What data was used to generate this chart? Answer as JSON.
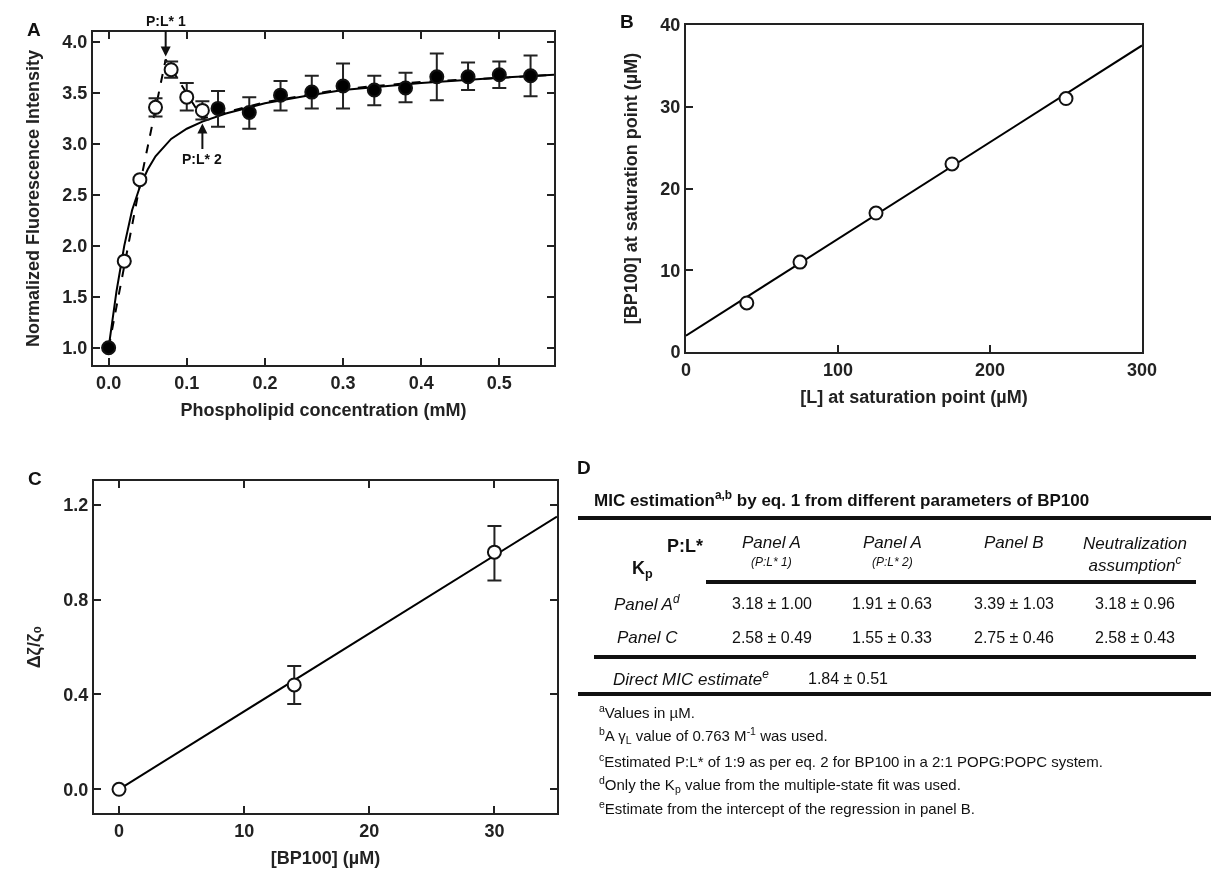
{
  "chart_data": [
    {
      "type": "scatter",
      "title": "A",
      "xlabel": "Phospholipid concentration (mM)",
      "ylabel": "Normalized Fluorescence Intensity",
      "marker": "circle",
      "grid": false,
      "xlim": [
        -0.02,
        0.57
      ],
      "xticks": [
        {
          "value": 0,
          "label": "0.0"
        },
        0.1,
        0.2,
        0.3,
        0.4,
        0.5
      ],
      "ylim": [
        0.83,
        4.1
      ],
      "yticks": [
        {
          "value": 1,
          "label": "1.0"
        },
        1.5,
        {
          "value": 2,
          "label": "2.0"
        },
        2.5,
        {
          "value": 3,
          "label": "3.0"
        },
        3.5,
        {
          "value": 4,
          "label": "4.0"
        }
      ],
      "series": [
        {
          "type": "line",
          "marker": "none",
          "line_style": "solid",
          "color": "#000000",
          "x": [
            0,
            0.01,
            0.02,
            0.03,
            0.04,
            0.05,
            0.06,
            0.08,
            0.1,
            0.12,
            0.15,
            0.2,
            0.25,
            0.3,
            0.4,
            0.5,
            0.57
          ],
          "values": [
            1.0,
            1.55,
            2.0,
            2.35,
            2.58,
            2.75,
            2.88,
            3.05,
            3.15,
            3.22,
            3.3,
            3.4,
            3.47,
            3.53,
            3.6,
            3.65,
            3.68
          ]
        },
        {
          "type": "line",
          "marker": "none",
          "line_style": "dashed",
          "color": "#000000",
          "x": [
            0,
            0.02,
            0.04,
            0.073,
            0.12,
            0.2,
            0.3,
            0.4,
            0.5,
            0.57
          ],
          "values": [
            1.0,
            1.8,
            2.6,
            3.83,
            3.25,
            3.41,
            3.54,
            3.61,
            3.65,
            3.68
          ]
        },
        {
          "color": "#ffffff",
          "x": [
            0.02,
            0.04,
            0.06,
            0.08,
            0.1,
            0.12
          ],
          "values": [
            1.85,
            2.65,
            3.36,
            3.73,
            3.46,
            3.33
          ],
          "errors": [
            null,
            null,
            [
              3.27,
              3.45
            ],
            [
              3.65,
              3.81
            ],
            [
              3.33,
              3.6
            ],
            [
              3.24,
              3.42
            ]
          ]
        },
        {
          "color": "#000000",
          "x": [
            0,
            0.14,
            0.18,
            0.22,
            0.26,
            0.3,
            0.34,
            0.38,
            0.42,
            0.46,
            0.5,
            0.54
          ],
          "values": [
            1.0,
            3.35,
            3.31,
            3.48,
            3.51,
            3.57,
            3.53,
            3.55,
            3.66,
            3.66,
            3.68,
            3.67
          ],
          "errors": [
            null,
            [
              3.17,
              3.52
            ],
            [
              3.15,
              3.46
            ],
            [
              3.33,
              3.62
            ],
            [
              3.35,
              3.67
            ],
            [
              3.35,
              3.79
            ],
            [
              3.38,
              3.67
            ],
            [
              3.41,
              3.7
            ],
            [
              3.43,
              3.89
            ],
            [
              3.53,
              3.8
            ],
            [
              3.55,
              3.81
            ],
            [
              3.47,
              3.87
            ]
          ]
        }
      ],
      "annotations": [
        {
          "text": "P:L* 1",
          "x": 0.073,
          "y": 3.83
        },
        {
          "text": "P:L* 2",
          "x": 0.12,
          "y": 3.23
        }
      ]
    },
    {
      "type": "scatter",
      "title": "B",
      "xlabel": "[L] at saturation point (µM)",
      "ylabel": "[BP100] at saturation point (µM)",
      "marker": "circle",
      "grid": false,
      "xlim": [
        0,
        300
      ],
      "xticks": [
        0,
        100,
        200,
        300
      ],
      "ylim": [
        0,
        40
      ],
      "yticks": [
        0,
        10,
        20,
        30,
        40
      ],
      "series": [
        {
          "type": "line",
          "marker": "none",
          "line_style": "solid",
          "color": "#000000",
          "x": [
            0,
            300
          ],
          "values": [
            2.0,
            37.5
          ]
        },
        {
          "color": "#ffffff",
          "x": [
            40,
            75,
            125,
            175,
            250
          ],
          "values": [
            6,
            11,
            17,
            23,
            31
          ]
        }
      ]
    },
    {
      "type": "scatter",
      "title": "C",
      "xlabel": "[BP100] (µM)",
      "ylabel": "Δζ/ζ₀",
      "marker": "circle",
      "grid": false,
      "xlim": [
        -2,
        35
      ],
      "xticks": [
        0,
        10,
        20,
        30
      ],
      "ylim": [
        -0.1,
        1.3
      ],
      "yticks": [
        {
          "value": 0,
          "label": "0.0"
        },
        0.4,
        0.8,
        1.2
      ],
      "series": [
        {
          "type": "line",
          "marker": "none",
          "line_style": "solid",
          "color": "#000000",
          "x": [
            0,
            35
          ],
          "values": [
            0,
            1.15
          ]
        },
        {
          "color": "#ffffff",
          "x": [
            0,
            14,
            30
          ],
          "values": [
            0,
            0.44,
            1.0
          ],
          "errors": [
            null,
            [
              0.36,
              0.52
            ],
            [
              0.88,
              1.11
            ]
          ]
        }
      ]
    },
    {
      "type": "other",
      "title": "D",
      "annotations": [
        "MIC estimation$^{a,b}$ by eq. 1 from different parameters of BP100",
        "P:L*",
        "K$_{p}$",
        "Panel A",
        "(P:L* 1)",
        "Panel A",
        "(P:L* 2)",
        "Panel B",
        "Neutralization\nassumption$^{c}$",
        "Panel A$^{d}$",
        "3.18 ± 1.00",
        "1.91 ± 0.63",
        "3.39 ± 1.03",
        "3.18 ± 0.96",
        "Panel C",
        "2.58 ± 0.49",
        "1.55 ± 0.33",
        "2.75 ± 0.46",
        "2.58 ± 0.43",
        "Direct MIC estimate$^{e}$",
        "1.84 ± 0.51",
        "$^{a}$Values in µM.",
        "$^{b}$A γ$_{L}$ value of 0.763 M$^{-1}$ was used.",
        "$^{c}$Estimated P:L* of 1:9 as per eq. 2 for BP100 in a 2:1 POPG:POPC system.",
        "$^{d}$Only the K$_{p}$ value from the multiple-state fit was used.",
        "$^{e}$Estimate from the intercept of the regression in panel B."
      ]
    }
  ]
}
